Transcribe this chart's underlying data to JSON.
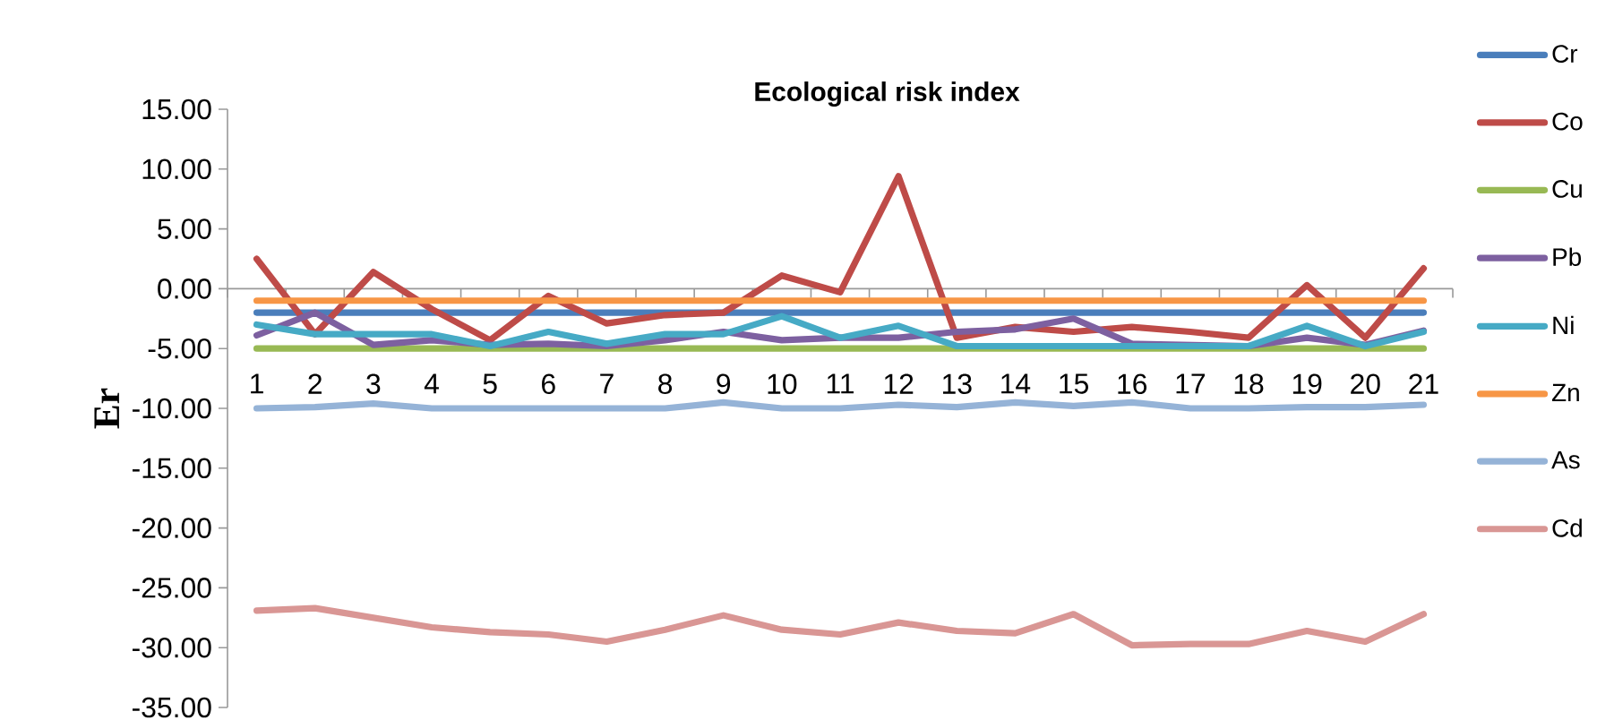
{
  "chart_data": {
    "type": "line",
    "title": "Ecological risk index",
    "ylabel": "Er",
    "categories": [
      "1",
      "2",
      "3",
      "4",
      "5",
      "6",
      "7",
      "8",
      "9",
      "10",
      "11",
      "12",
      "13",
      "14",
      "15",
      "16",
      "17",
      "18",
      "19",
      "20",
      "21"
    ],
    "series": [
      {
        "name": "Cr",
        "color": "#4a7ebb",
        "values": [
          -2,
          -2,
          -2,
          -2,
          -2,
          -2,
          -2,
          -2,
          -2,
          -2,
          -2,
          -2,
          -2,
          -2,
          -2,
          -2,
          -2,
          -2,
          -2,
          -2,
          -2
        ]
      },
      {
        "name": "Co",
        "color": "#be4b48",
        "values": [
          2.5,
          -3.8,
          1.4,
          -1.7,
          -4.3,
          -0.6,
          -2.9,
          -2.2,
          -2.0,
          1.1,
          -0.3,
          9.4,
          -4.1,
          -3.2,
          -3.6,
          -3.2,
          -3.6,
          -4.1,
          0.3,
          -4.1,
          1.7
        ]
      },
      {
        "name": "Cu",
        "color": "#98b954",
        "values": [
          -5,
          -5,
          -5,
          -5,
          -5,
          -5,
          -5,
          -5,
          -5,
          -5,
          -5,
          -5,
          -5,
          -5,
          -5,
          -5,
          -5,
          -5,
          -5,
          -5,
          -5
        ]
      },
      {
        "name": "Pb",
        "color": "#7d60a0",
        "values": [
          -3.9,
          -2.0,
          -4.7,
          -4.3,
          -4.7,
          -4.6,
          -4.8,
          -4.3,
          -3.6,
          -4.3,
          -4.1,
          -4.1,
          -3.6,
          -3.4,
          -2.5,
          -4.6,
          -4.7,
          -4.8,
          -4.1,
          -4.7,
          -3.5
        ]
      },
      {
        "name": "Ni",
        "color": "#46aac5",
        "values": [
          -3.0,
          -3.8,
          -3.8,
          -3.8,
          -4.8,
          -3.6,
          -4.6,
          -3.8,
          -3.8,
          -2.3,
          -4.1,
          -3.1,
          -4.8,
          -4.8,
          -4.8,
          -4.8,
          -4.8,
          -4.8,
          -3.1,
          -4.8,
          -3.6
        ]
      },
      {
        "name": "Zn",
        "color": "#f79646",
        "values": [
          -1,
          -1,
          -1,
          -1,
          -1,
          -1,
          -1,
          -1,
          -1,
          -1,
          -1,
          -1,
          -1,
          -1,
          -1,
          -1,
          -1,
          -1,
          -1,
          -1,
          -1
        ]
      },
      {
        "name": "As",
        "color": "#95b3d7",
        "values": [
          -10,
          -9.9,
          -9.6,
          -10,
          -10,
          -10,
          -10,
          -10,
          -9.5,
          -10,
          -10,
          -9.7,
          -9.9,
          -9.5,
          -9.8,
          -9.5,
          -10,
          -10,
          -9.9,
          -9.9,
          -9.7
        ]
      },
      {
        "name": "Cd",
        "color": "#d99694",
        "values": [
          -26.9,
          -26.7,
          -27.5,
          -28.3,
          -28.7,
          -28.9,
          -29.5,
          -28.5,
          -27.3,
          -28.5,
          -28.9,
          -27.9,
          -28.6,
          -28.8,
          -27.2,
          -29.8,
          -29.7,
          -29.7,
          -28.6,
          -29.5,
          -27.2
        ]
      }
    ],
    "ylim": [
      -35,
      15
    ],
    "yticks": [
      {
        "value": -35,
        "label": "-35.00"
      },
      {
        "value": -30,
        "label": "-30.00"
      },
      {
        "value": -25,
        "label": "-25.00"
      },
      {
        "value": -20,
        "label": "-20.00"
      },
      {
        "value": -15,
        "label": "-15.00"
      },
      {
        "value": -10,
        "label": "-10.00"
      },
      {
        "value": -5,
        "label": "-5.00"
      },
      {
        "value": 0,
        "label": "0.00"
      },
      {
        "value": 5,
        "label": "5.00"
      },
      {
        "value": 10,
        "label": "10.00"
      },
      {
        "value": 15,
        "label": "15.00"
      }
    ],
    "legend": "right"
  }
}
